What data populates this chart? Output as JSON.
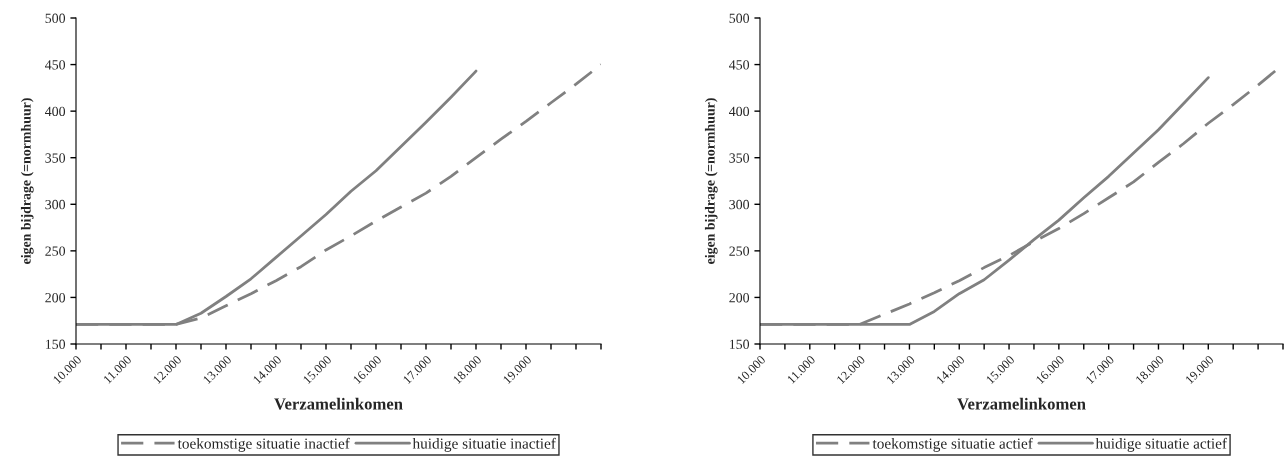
{
  "chart_data": [
    {
      "type": "line",
      "xlabel": "Verzamelinkomen",
      "ylabel": "eigen bijdrage (=normhuur)",
      "legend": "bottom",
      "grid": false,
      "xlim": [
        10000,
        20500
      ],
      "ylim": [
        150,
        500
      ],
      "yticks": [
        150,
        200,
        250,
        300,
        350,
        400,
        450,
        500
      ],
      "xticks": [
        {
          "value": 10000,
          "label": "10.000"
        },
        {
          "value": 10500,
          "label": null
        },
        {
          "value": 11000,
          "label": "11.000"
        },
        {
          "value": 11500,
          "label": null
        },
        {
          "value": 12000,
          "label": "12.000"
        },
        {
          "value": 12500,
          "label": null
        },
        {
          "value": 13000,
          "label": "13.000"
        },
        {
          "value": 13500,
          "label": null
        },
        {
          "value": 14000,
          "label": "14.000"
        },
        {
          "value": 14500,
          "label": null
        },
        {
          "value": 15000,
          "label": "15.000"
        },
        {
          "value": 15500,
          "label": null
        },
        {
          "value": 16000,
          "label": "16.000"
        },
        {
          "value": 16500,
          "label": null
        },
        {
          "value": 17000,
          "label": "17.000"
        },
        {
          "value": 17500,
          "label": null
        },
        {
          "value": 18000,
          "label": "18.000"
        },
        {
          "value": 18500,
          "label": null
        },
        {
          "value": 19000,
          "label": "19.000"
        },
        {
          "value": 19500,
          "label": null
        },
        {
          "value": 20000,
          "label": null
        },
        {
          "value": 20500,
          "label": null
        }
      ],
      "x": [
        10000,
        10500,
        11000,
        11500,
        12000,
        12500,
        13000,
        13500,
        14000,
        14500,
        15000,
        15500,
        16000,
        16500,
        17000,
        17500,
        18000,
        18500,
        19000,
        19500,
        20000,
        20500
      ],
      "series": [
        {
          "name": "toekomstige situatie inactief",
          "color": "#808080",
          "line_style": "dashed",
          "values": [
            171,
            171,
            171,
            171,
            171,
            178,
            191,
            204,
            218,
            233,
            251,
            266,
            282,
            297,
            312,
            330,
            350,
            370,
            389,
            409,
            429,
            450
          ]
        },
        {
          "name": "huidige situatie inactief",
          "color": "#808080",
          "line_style": "solid",
          "values": [
            171,
            171,
            171,
            171,
            171,
            183,
            201,
            220,
            243,
            266,
            289,
            314,
            336,
            362,
            388,
            415,
            443,
            null,
            null,
            null,
            null,
            null
          ]
        }
      ]
    },
    {
      "type": "line",
      "xlabel": "Verzamelinkomen",
      "ylabel": "eigen bijdrage (=normhuur)",
      "legend": "bottom",
      "grid": false,
      "xlim": [
        10000,
        20500
      ],
      "ylim": [
        150,
        500
      ],
      "yticks": [
        150,
        200,
        250,
        300,
        350,
        400,
        450,
        500
      ],
      "xticks": [
        {
          "value": 10000,
          "label": "10.000"
        },
        {
          "value": 10500,
          "label": null
        },
        {
          "value": 11000,
          "label": "11.000"
        },
        {
          "value": 11500,
          "label": null
        },
        {
          "value": 12000,
          "label": "12.000"
        },
        {
          "value": 12500,
          "label": null
        },
        {
          "value": 13000,
          "label": "13.000"
        },
        {
          "value": 13500,
          "label": null
        },
        {
          "value": 14000,
          "label": "14.000"
        },
        {
          "value": 14500,
          "label": null
        },
        {
          "value": 15000,
          "label": "15.000"
        },
        {
          "value": 15500,
          "label": null
        },
        {
          "value": 16000,
          "label": "16.000"
        },
        {
          "value": 16500,
          "label": null
        },
        {
          "value": 17000,
          "label": "17.000"
        },
        {
          "value": 17500,
          "label": null
        },
        {
          "value": 18000,
          "label": "18.000"
        },
        {
          "value": 18500,
          "label": null
        },
        {
          "value": 19000,
          "label": "19.000"
        },
        {
          "value": 19500,
          "label": null
        },
        {
          "value": 20000,
          "label": null
        },
        {
          "value": 20500,
          "label": null
        }
      ],
      "x": [
        10000,
        10500,
        11000,
        11500,
        12000,
        12500,
        13000,
        13500,
        14000,
        14500,
        15000,
        15500,
        16000,
        16500,
        17000,
        17500,
        18000,
        18500,
        19000,
        19500,
        20000,
        20500
      ],
      "series": [
        {
          "name": "toekomstige situatie actief",
          "color": "#808080",
          "line_style": "dashed",
          "values": [
            171,
            171,
            171,
            171,
            171,
            182,
            193,
            205,
            218,
            232,
            245,
            260,
            274,
            290,
            307,
            324,
            345,
            365,
            387,
            407,
            428,
            450
          ]
        },
        {
          "name": "huidige situatie actief",
          "color": "#808080",
          "line_style": "solid",
          "values": [
            171,
            171,
            171,
            171,
            171,
            171,
            171,
            185,
            204,
            219,
            240,
            262,
            283,
            307,
            330,
            355,
            380,
            408,
            436,
            null,
            null,
            null
          ]
        }
      ]
    }
  ]
}
